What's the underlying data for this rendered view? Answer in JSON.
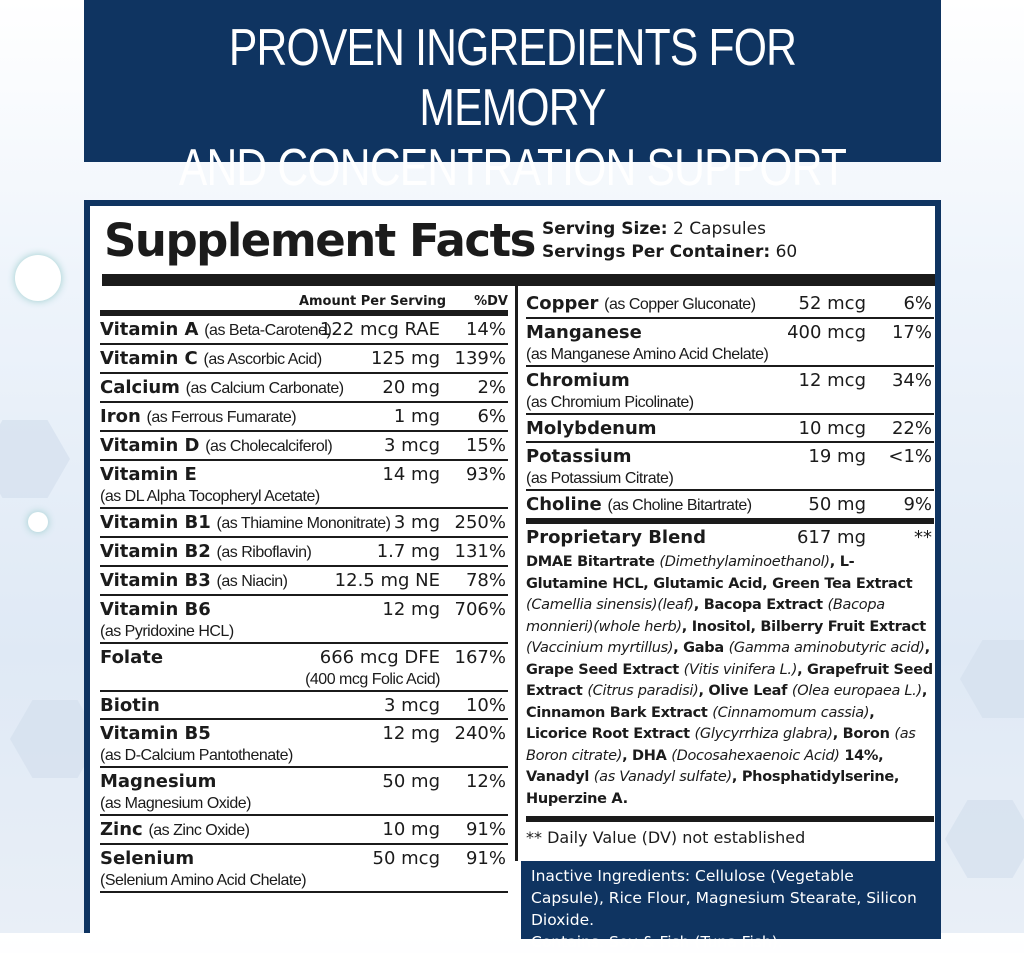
{
  "banner": {
    "line1": "PROVEN INGREDIENTS FOR MEMORY",
    "line2": "AND CONCENTRATION  SUPPORT"
  },
  "label": {
    "title": "Supplement Facts",
    "serving_size_label": "Serving Size:",
    "serving_size": "2 Capsules",
    "servings_label": "Servings Per Container:",
    "servings": "60",
    "header_amount": "Amount Per Serving",
    "header_dv": "%DV",
    "left_rows": [
      {
        "name": "Vitamin A",
        "form": "(as Beta-Carotene)",
        "amount": "122 mcg RAE",
        "dv": "14%"
      },
      {
        "name": "Vitamin C",
        "form": "(as Ascorbic Acid)",
        "amount": "125 mg",
        "dv": "139%"
      },
      {
        "name": "Calcium",
        "form": "(as Calcium Carbonate)",
        "amount": "20 mg",
        "dv": "2%"
      },
      {
        "name": "Iron",
        "form": "(as Ferrous Fumarate)",
        "amount": "1 mg",
        "dv": "6%"
      },
      {
        "name": "Vitamin D",
        "form": "(as Cholecalciferol)",
        "amount": "3 mcg",
        "dv": "15%"
      },
      {
        "name": "Vitamin E",
        "sub": "(as DL Alpha Tocopheryl Acetate)",
        "amount": "14 mg",
        "dv": "93%"
      },
      {
        "name": "Vitamin B1",
        "form": "(as Thiamine Mononitrate)",
        "amount": "3 mg",
        "dv": "250%"
      },
      {
        "name": "Vitamin B2",
        "form": "(as Riboflavin)",
        "amount": "1.7 mg",
        "dv": "131%"
      },
      {
        "name": "Vitamin B3",
        "form": "(as Niacin)",
        "amount": "12.5 mg NE",
        "dv": "78%"
      },
      {
        "name": "Vitamin B6",
        "sub": "(as Pyridoxine HCL)",
        "amount": "12 mg",
        "dv": "706%"
      },
      {
        "name": "Folate",
        "sub": "(400 mcg Folic Acid)",
        "amount": "666 mcg DFE",
        "dv": "167%"
      },
      {
        "name": "Biotin",
        "amount": "3 mcg",
        "dv": "10%"
      },
      {
        "name": "Vitamin B5",
        "sub": "(as D-Calcium Pantothenate)",
        "amount": "12 mg",
        "dv": "240%"
      },
      {
        "name": "Magnesium",
        "sub": "(as Magnesium Oxide)",
        "amount": "50 mg",
        "dv": "12%"
      },
      {
        "name": "Zinc",
        "form": "(as Zinc Oxide)",
        "amount": "10 mg",
        "dv": "91%"
      },
      {
        "name": "Selenium",
        "sub": "(Selenium Amino Acid Chelate)",
        "amount": "50 mcg",
        "dv": "91%"
      }
    ],
    "right_rows": [
      {
        "name": "Copper",
        "form": "(as Copper Gluconate)",
        "amount": "52 mcg",
        "dv": "6%"
      },
      {
        "name": "Manganese",
        "sub": "(as Manganese Amino Acid Chelate)",
        "amount": "400 mcg",
        "dv": "17%"
      },
      {
        "name": "Chromium",
        "sub": "(as Chromium Picolinate)",
        "amount": "12 mcg",
        "dv": "34%"
      },
      {
        "name": "Molybdenum",
        "amount": "10 mcg",
        "dv": "22%"
      },
      {
        "name": "Potassium",
        "sub": "(as Potassium Citrate)",
        "amount": "19 mg",
        "dv": "<1%"
      },
      {
        "name": "Choline",
        "form": "(as Choline Bitartrate)",
        "amount": "50 mg",
        "dv": "9%"
      }
    ],
    "blend": {
      "name": "Proprietary Blend",
      "amount": "617 mg",
      "dv": "**",
      "ingredients": [
        [
          "b",
          "DMAE Bitartrate "
        ],
        [
          "i",
          "(Dimethylaminoethanol)"
        ],
        [
          "b",
          ", L-Glutamine HCL, Glutamic Acid, Green Tea Extract "
        ],
        [
          "i",
          "(Camellia sinensis)(leaf)"
        ],
        [
          "b",
          ", Bacopa Extract "
        ],
        [
          "i",
          "(Bacopa monnieri)(whole herb)"
        ],
        [
          "b",
          ", Inositol, Bilberry Fruit Extract "
        ],
        [
          "i",
          "(Vaccinium myrtillus)"
        ],
        [
          "b",
          ", Gaba "
        ],
        [
          "i",
          "(Gamma aminobutyric acid)"
        ],
        [
          "b",
          ", Grape Seed Extract "
        ],
        [
          "i",
          "(Vitis vinifera L.)"
        ],
        [
          "b",
          ", Grapefruit Seed Extract "
        ],
        [
          "i",
          "(Citrus paradisi)"
        ],
        [
          "b",
          ", Olive Leaf "
        ],
        [
          "i",
          "(Olea europaea L.)"
        ],
        [
          "b",
          ", Cinnamon Bark Extract "
        ],
        [
          "i",
          "(Cinnamomum cassia)"
        ],
        [
          "b",
          ", Licorice Root Extract "
        ],
        [
          "i",
          "(Glycyrrhiza glabra)"
        ],
        [
          "b",
          ", Boron "
        ],
        [
          "i",
          "(as Boron citrate)"
        ],
        [
          "b",
          ", DHA "
        ],
        [
          "i",
          "(Docosahexaenoic Acid)"
        ],
        [
          "b",
          " 14%, Vanadyl "
        ],
        [
          "i",
          "(as Vanadyl sulfate)"
        ],
        [
          "b",
          ", Phosphatidylserine, Huperzine A."
        ]
      ]
    },
    "footnote": "** Daily Value (DV) not established",
    "inactive": "Inactive Ingredients: Cellulose (Vegetable Capsule), Rice Flour, Magnesium Stearate, Silicon Dioxide.",
    "contains": "Contains: Soy & Fish (Tuna Fish)."
  },
  "colors": {
    "navy": "#0f3461",
    "text": "#1b1b1b"
  }
}
